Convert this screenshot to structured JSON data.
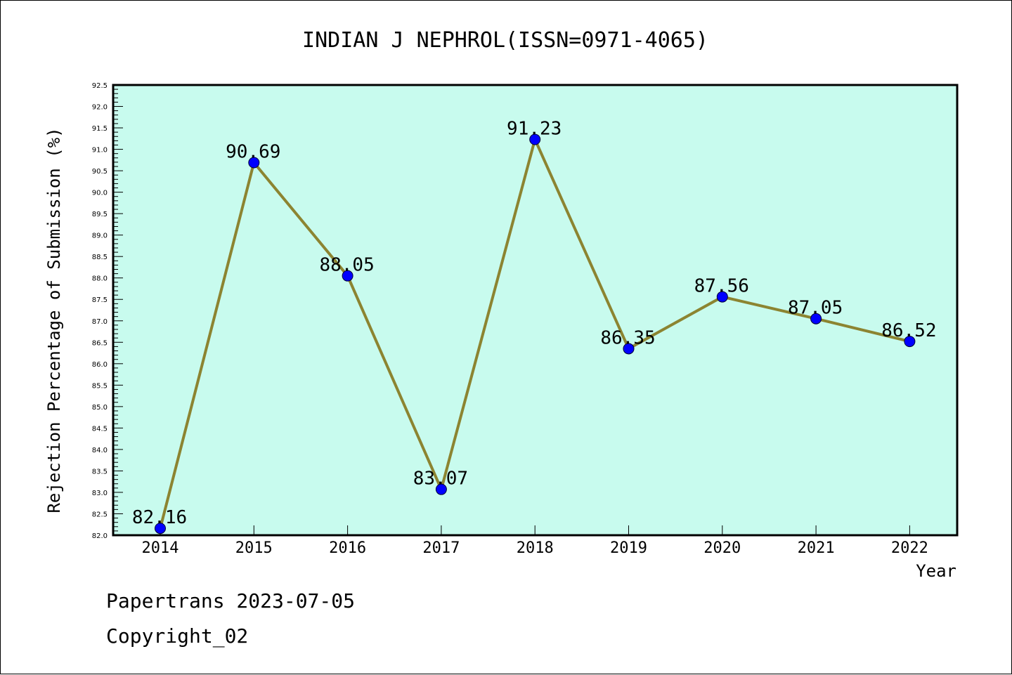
{
  "chart_data": {
    "type": "line",
    "title": "INDIAN J NEPHROL(ISSN=0971-4065)",
    "xlabel": "Year",
    "ylabel": "Rejection Percentage of Submission (%)",
    "categories": [
      "2014",
      "2015",
      "2016",
      "2017",
      "2018",
      "2019",
      "2020",
      "2021",
      "2022"
    ],
    "values": [
      82.16,
      90.69,
      88.05,
      83.07,
      91.23,
      86.35,
      87.56,
      87.05,
      86.52
    ],
    "data_labels": [
      "82.16",
      "90.69",
      "88.05",
      "83.07",
      "91.23",
      "86.35",
      "87.56",
      "87.05",
      "86.52"
    ],
    "ylim": [
      82.0,
      92.5
    ],
    "yticks": [
      "82.0",
      "82.5",
      "83.0",
      "83.5",
      "84.0",
      "84.5",
      "85.0",
      "85.5",
      "86.0",
      "86.5",
      "87.0",
      "87.5",
      "88.0",
      "88.5",
      "89.0",
      "89.5",
      "90.0",
      "90.5",
      "91.0",
      "91.5",
      "92.0",
      "92.5"
    ],
    "grid": false,
    "colors": {
      "plot_background": "#c8fbee",
      "line": "#8c8431",
      "marker": "#0000ff"
    }
  },
  "footer": {
    "line1": "Papertrans 2023-07-05",
    "line2": "Copyright_02"
  }
}
